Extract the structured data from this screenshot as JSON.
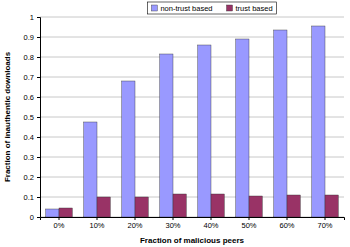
{
  "chart_data": {
    "type": "bar",
    "categories": [
      "0%",
      "10%",
      "20%",
      "30%",
      "40%",
      "50%",
      "60%",
      "70%"
    ],
    "series": [
      {
        "name": "non-trust based",
        "color": "#9999ff",
        "values": [
          0.04,
          0.475,
          0.68,
          0.815,
          0.86,
          0.89,
          0.935,
          0.955
        ]
      },
      {
        "name": "trust based",
        "color": "#993366",
        "values": [
          0.045,
          0.1,
          0.1,
          0.115,
          0.115,
          0.105,
          0.11,
          0.11
        ]
      }
    ],
    "x_label": "Fraction of malicious peers",
    "y_label": "Fraction of inauthentic downloads",
    "ylim": [
      0,
      1
    ],
    "yticks": [
      0,
      0.1,
      0.2,
      0.3,
      0.4,
      0.5,
      0.6,
      0.7,
      0.8,
      0.9,
      1
    ],
    "grid": true,
    "legend": "top"
  }
}
